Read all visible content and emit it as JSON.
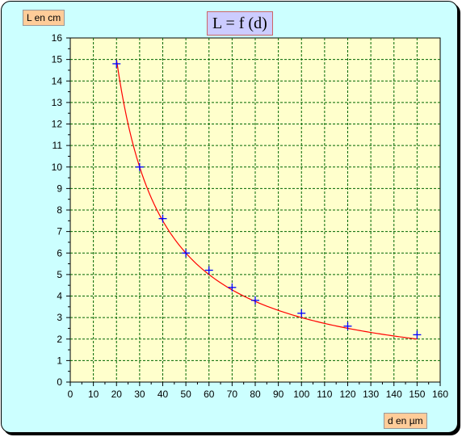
{
  "chart_data": {
    "type": "scatter",
    "title": "L = f (d)",
    "xlabel": "d en µm",
    "ylabel": "L en cm",
    "xlim": [
      0,
      160
    ],
    "ylim": [
      0,
      16
    ],
    "x_ticks": [
      0,
      10,
      20,
      30,
      40,
      50,
      60,
      70,
      80,
      90,
      100,
      110,
      120,
      130,
      140,
      150,
      160
    ],
    "y_ticks": [
      0,
      1,
      2,
      3,
      4,
      5,
      6,
      7,
      8,
      9,
      10,
      11,
      12,
      13,
      14,
      15,
      16
    ],
    "grid": true,
    "series": [
      {
        "kind": "points",
        "marker": "plus",
        "color": "#0000ff",
        "x": [
          20,
          30,
          40,
          50,
          60,
          70,
          80,
          100,
          120,
          150
        ],
        "y": [
          14.8,
          10.0,
          7.6,
          6.0,
          5.2,
          4.4,
          3.8,
          3.2,
          2.6,
          2.2
        ]
      },
      {
        "kind": "curve",
        "color": "#ff0000",
        "model": "L = k / d",
        "k": 300,
        "x_range": [
          20,
          150
        ]
      }
    ],
    "plot_background": "#ffffcc",
    "grid_color": "#006600"
  }
}
